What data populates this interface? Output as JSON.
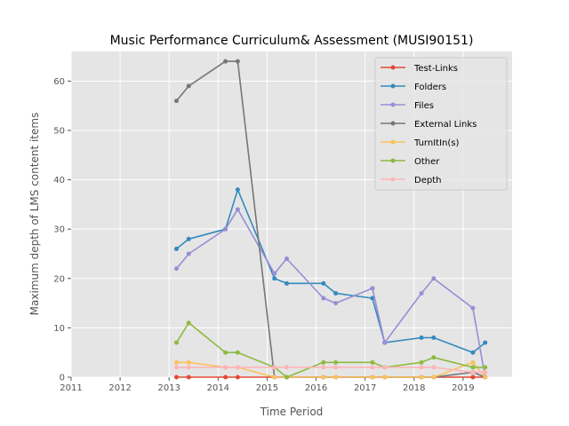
{
  "chart_data": {
    "type": "line",
    "title": "Music Performance Curriculum& Assessment (MUSI90151)",
    "xlabel": "Time Period",
    "ylabel": "Maximum depth of LMS content items",
    "xlim": [
      2011,
      2020
    ],
    "ylim": [
      0,
      66
    ],
    "xticks": [
      2011,
      2012,
      2013,
      2014,
      2015,
      2016,
      2017,
      2018,
      2019
    ],
    "yticks": [
      0,
      10,
      20,
      30,
      40,
      50,
      60
    ],
    "grid": true,
    "legend_position": "top-right",
    "series": [
      {
        "name": "Test-Links",
        "color": "#E24A33",
        "x": [
          2013.15,
          2013.4,
          2014.15,
          2014.4,
          2015.15,
          2015.4,
          2016.15,
          2016.4,
          2017.15,
          2017.4,
          2018.15,
          2018.4,
          2019.2,
          2019.45
        ],
        "y": [
          0,
          0,
          0,
          0,
          0,
          0,
          0,
          0,
          0,
          0,
          0,
          0,
          0,
          0
        ]
      },
      {
        "name": "Folders",
        "color": "#348ABD",
        "x": [
          2013.15,
          2013.4,
          2014.15,
          2014.4,
          2015.15,
          2015.4,
          2016.15,
          2016.4,
          2017.15,
          2017.4,
          2018.15,
          2018.4,
          2019.2,
          2019.45
        ],
        "y": [
          26,
          28,
          30,
          38,
          20,
          19,
          19,
          17,
          16,
          7,
          8,
          8,
          5,
          7
        ]
      },
      {
        "name": "Files",
        "color": "#988ED5",
        "x": [
          2013.15,
          2013.4,
          2014.15,
          2014.4,
          2015.15,
          2015.4,
          2016.15,
          2016.4,
          2017.15,
          2017.4,
          2018.15,
          2018.4,
          2019.2,
          2019.45
        ],
        "y": [
          22,
          25,
          30,
          34,
          21,
          24,
          16,
          15,
          18,
          7,
          17,
          20,
          14,
          0
        ]
      },
      {
        "name": "External Links",
        "color": "#777777",
        "x": [
          2013.15,
          2013.4,
          2014.15,
          2014.4,
          2015.15,
          2015.4,
          2016.15,
          2016.4,
          2017.15,
          2017.4,
          2018.15,
          2018.4,
          2019.2,
          2019.45
        ],
        "y": [
          56,
          59,
          64,
          64,
          0,
          0,
          0,
          0,
          0,
          0,
          0,
          0,
          1,
          0
        ]
      },
      {
        "name": "TurnItIn(s)",
        "color": "#FBC15E",
        "x": [
          2013.15,
          2013.4,
          2014.15,
          2014.4,
          2015.15,
          2015.4,
          2016.15,
          2016.4,
          2017.15,
          2017.4,
          2018.15,
          2018.4,
          2019.2,
          2019.45
        ],
        "y": [
          3,
          3,
          2,
          2,
          0,
          0,
          0,
          0,
          0,
          0,
          0,
          0,
          3,
          0
        ]
      },
      {
        "name": "Other",
        "color": "#8EBA42",
        "x": [
          2013.15,
          2013.4,
          2014.15,
          2014.4,
          2015.15,
          2015.4,
          2016.15,
          2016.4,
          2017.15,
          2017.4,
          2018.15,
          2018.4,
          2019.2,
          2019.45
        ],
        "y": [
          7,
          11,
          5,
          5,
          2,
          0,
          3,
          3,
          3,
          2,
          3,
          4,
          2,
          2
        ]
      },
      {
        "name": "Depth",
        "color": "#FFB5B8",
        "x": [
          2013.15,
          2013.4,
          2014.15,
          2014.4,
          2015.15,
          2015.4,
          2016.15,
          2016.4,
          2017.15,
          2017.4,
          2018.15,
          2018.4,
          2019.2,
          2019.45
        ],
        "y": [
          2,
          2,
          2,
          2,
          2,
          2,
          2,
          2,
          2,
          2,
          2,
          2,
          1,
          1
        ]
      }
    ]
  }
}
